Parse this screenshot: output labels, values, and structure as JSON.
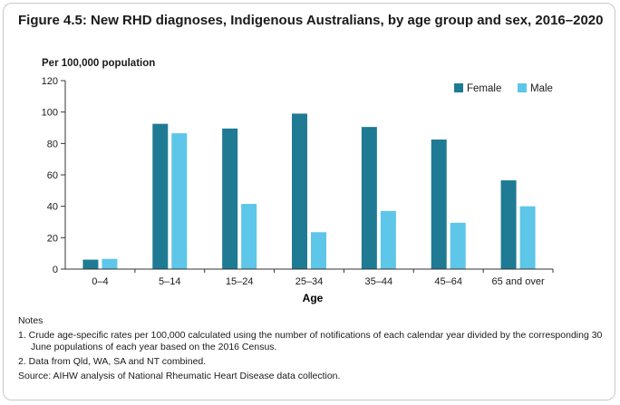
{
  "figure": {
    "title": "Figure 4.5: New RHD diagnoses, Indigenous Australians, by age group and sex, 2016–2020"
  },
  "chart_data": {
    "type": "bar",
    "title": "Figure 4.5: New RHD diagnoses, Indigenous Australians, by age group and sex, 2016–2020",
    "ylabel": "Per 100,000 population",
    "xlabel": "Age",
    "ylim": [
      0,
      120
    ],
    "yticks": [
      "0",
      "20",
      "40",
      "60",
      "80",
      "100",
      "120"
    ],
    "categories": [
      "0–4",
      "5–14",
      "15–24",
      "25–34",
      "35–44",
      "45–64",
      "65 and over"
    ],
    "series": [
      {
        "name": "Female",
        "color": "#1f7a94",
        "values": [
          6,
          92.5,
          89.5,
          99,
          90.5,
          82.5,
          56.5
        ]
      },
      {
        "name": "Male",
        "color": "#5ec6e8",
        "values": [
          6.5,
          86.5,
          41.5,
          23.5,
          37,
          29.5,
          40
        ]
      }
    ],
    "legend_position": "top-right",
    "grid": false
  },
  "notes": {
    "heading": "Notes",
    "items": [
      "1. Crude age-specific rates per 100,000 calculated using the number of notifications of each calendar year divided by the corresponding 30 June populations of each year based on the 2016 Census.",
      "2. Data from Qld, WA, SA and NT combined."
    ],
    "source": "Source: AIHW analysis of National Rheumatic Heart Disease data collection."
  }
}
